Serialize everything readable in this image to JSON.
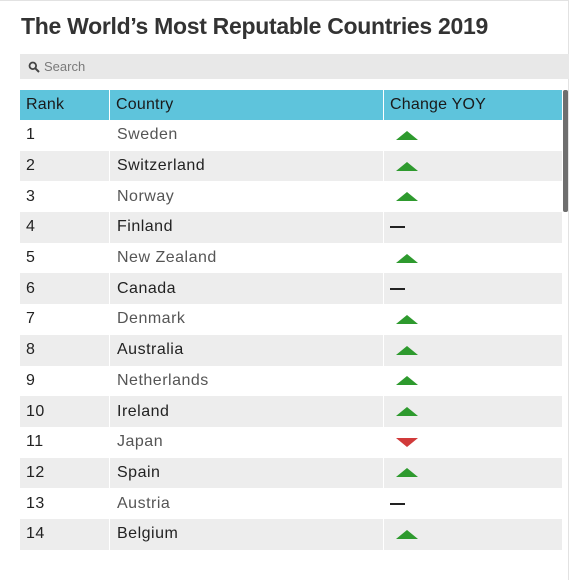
{
  "title": "The World’s Most Reputable Countries 2019",
  "search": {
    "placeholder": "Search",
    "icon": "search-icon"
  },
  "table": {
    "columns": [
      "Rank",
      "Country",
      "Change YOY"
    ],
    "rows": [
      {
        "rank": "1",
        "country": "Sweden",
        "change": "up"
      },
      {
        "rank": "2",
        "country": "Switzerland",
        "change": "up"
      },
      {
        "rank": "3",
        "country": "Norway",
        "change": "up"
      },
      {
        "rank": "4",
        "country": "Finland",
        "change": "same"
      },
      {
        "rank": "5",
        "country": "New Zealand",
        "change": "up"
      },
      {
        "rank": "6",
        "country": "Canada",
        "change": "same"
      },
      {
        "rank": "7",
        "country": "Denmark",
        "change": "up"
      },
      {
        "rank": "8",
        "country": "Australia",
        "change": "up"
      },
      {
        "rank": "9",
        "country": "Netherlands",
        "change": "up"
      },
      {
        "rank": "10",
        "country": "Ireland",
        "change": "up"
      },
      {
        "rank": "11",
        "country": "Japan",
        "change": "down"
      },
      {
        "rank": "12",
        "country": "Spain",
        "change": "up"
      },
      {
        "rank": "13",
        "country": "Austria",
        "change": "same"
      },
      {
        "rank": "14",
        "country": "Belgium",
        "change": "up"
      }
    ]
  },
  "colors": {
    "header_bg": "#5ec4dc",
    "up": "#2e9a2e",
    "down": "#d13a3a",
    "stripe": "#ededed"
  }
}
